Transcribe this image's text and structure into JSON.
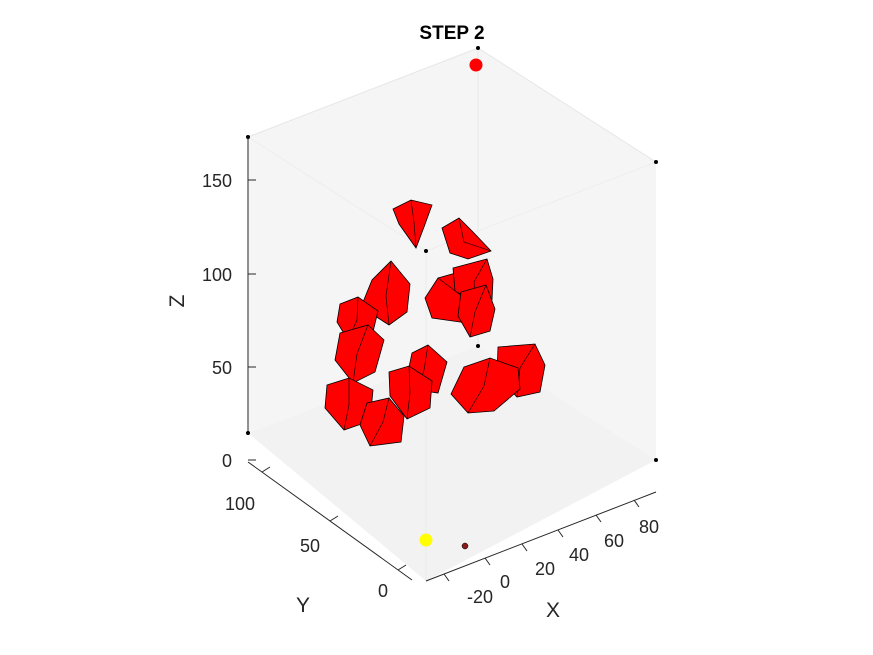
{
  "chart_data": {
    "type": "scatter3d",
    "title": "STEP 2",
    "xlabel": "X",
    "ylabel": "Y",
    "zlabel": "Z",
    "x_ticks": [
      "-20",
      "0",
      "20",
      "40",
      "60",
      "80"
    ],
    "y_ticks": [
      "0",
      "50",
      "100"
    ],
    "z_ticks": [
      "0",
      "50",
      "100",
      "150"
    ],
    "grid": "off",
    "legend": "none",
    "background_color": "#f7f7f7",
    "cluster_color": "#ff0000",
    "markers": [
      {
        "color": "#ff0000",
        "position": "top"
      },
      {
        "color": "#ffff00",
        "position": "bottom-front"
      },
      {
        "color": "#8b1a1a",
        "position": "bottom-front"
      }
    ],
    "clusters_count": 14
  }
}
